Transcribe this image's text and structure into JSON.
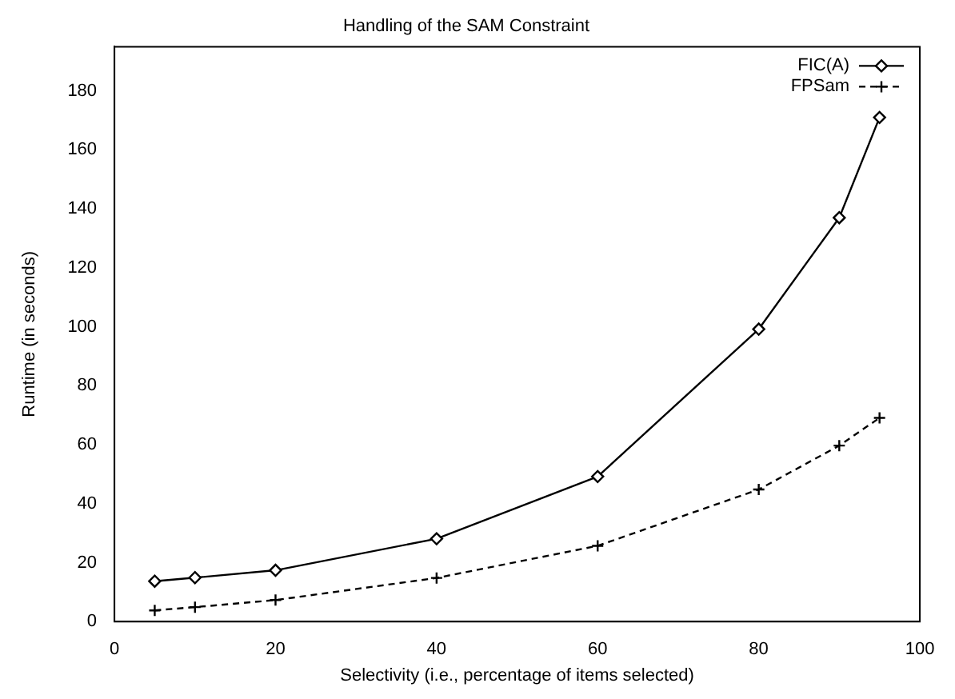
{
  "chart_data": {
    "type": "line",
    "title": "Handling of the SAM Constraint",
    "xlabel": "Selectivity (i.e., percentage of items selected)",
    "ylabel": "Runtime (in seconds)",
    "x": [
      5,
      10,
      20,
      40,
      60,
      80,
      90,
      95
    ],
    "series": [
      {
        "name": "FIC(A)",
        "color": "#000000",
        "values": [
          13.7,
          14.9,
          17.4,
          28.1,
          49.2,
          99.2,
          137,
          171
        ],
        "marker": "diamond",
        "line_style": "solid"
      },
      {
        "name": "FPSam",
        "color": "#000000",
        "values": [
          3.8,
          4.9,
          7.3,
          14.8,
          25.7,
          44.8,
          59.7,
          69.1
        ],
        "marker": "cross",
        "line_style": "dashed"
      }
    ],
    "xlim": [
      0,
      100
    ],
    "xticks": [
      0,
      20,
      40,
      60,
      80,
      100
    ],
    "ylim": [
      0,
      195
    ],
    "yticks": [
      0,
      20,
      40,
      60,
      80,
      100,
      120,
      140,
      160,
      180
    ],
    "grid": false,
    "legend": "top right"
  }
}
